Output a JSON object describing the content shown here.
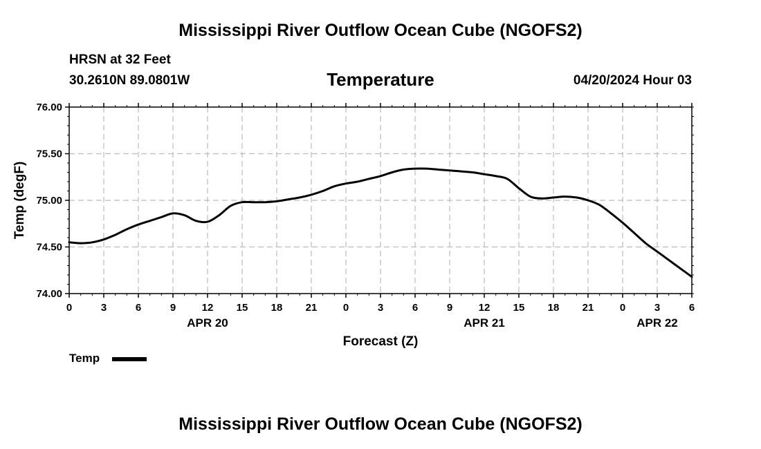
{
  "header": {
    "main_title": "Mississippi River Outflow Ocean Cube (NGOFS2)",
    "station": "HRSN at 32 Feet",
    "coordinates": "30.2610N  89.0801W",
    "variable_title": "Temperature",
    "datetime": "04/20/2024 Hour 03"
  },
  "legend": {
    "label": "Temp"
  },
  "footer": {
    "main_title": "Mississippi River Outflow Ocean Cube (NGOFS2)"
  },
  "colors": {
    "line": "#000000",
    "grid": "#bbbbbb",
    "background": "#ffffff"
  },
  "chart_data": {
    "type": "line",
    "title": "Temperature",
    "xlabel": "Forecast (Z)",
    "ylabel": "Temp (degF)",
    "ylim": [
      74.0,
      76.0
    ],
    "yticks": [
      "74.00",
      "74.50",
      "75.00",
      "75.50",
      "76.00"
    ],
    "xlim": [
      0,
      54
    ],
    "xticks": [
      "0",
      "3",
      "6",
      "9",
      "12",
      "15",
      "18",
      "21",
      "0",
      "3",
      "6",
      "9",
      "12",
      "15",
      "18",
      "21",
      "0",
      "3",
      "6"
    ],
    "date_labels": [
      {
        "label": "APR 20",
        "hour": 12
      },
      {
        "label": "APR 21",
        "hour": 36
      },
      {
        "label": "APR 22",
        "hour": 51
      }
    ],
    "grid": true,
    "series": [
      {
        "name": "Temp",
        "x": [
          0,
          1,
          2,
          3,
          4,
          5,
          6,
          7,
          8,
          9,
          10,
          11,
          12,
          13,
          14,
          15,
          16,
          17,
          18,
          19,
          20,
          21,
          22,
          23,
          24,
          25,
          26,
          27,
          28,
          29,
          30,
          31,
          32,
          33,
          34,
          35,
          36,
          37,
          38,
          39,
          40,
          41,
          42,
          43,
          44,
          45,
          46,
          47,
          48,
          49,
          50,
          51,
          52,
          53,
          54
        ],
        "values": [
          74.55,
          74.54,
          74.55,
          74.58,
          74.63,
          74.69,
          74.74,
          74.78,
          74.82,
          74.86,
          74.84,
          74.78,
          74.77,
          74.84,
          74.94,
          74.98,
          74.98,
          74.98,
          74.99,
          75.01,
          75.03,
          75.06,
          75.1,
          75.15,
          75.18,
          75.2,
          75.23,
          75.26,
          75.3,
          75.33,
          75.34,
          75.34,
          75.33,
          75.32,
          75.31,
          75.3,
          75.28,
          75.26,
          75.23,
          75.13,
          75.04,
          75.02,
          75.03,
          75.04,
          75.03,
          75.0,
          74.95,
          74.86,
          74.76,
          74.65,
          74.54,
          74.45,
          74.36,
          74.27,
          74.18
        ]
      }
    ]
  }
}
